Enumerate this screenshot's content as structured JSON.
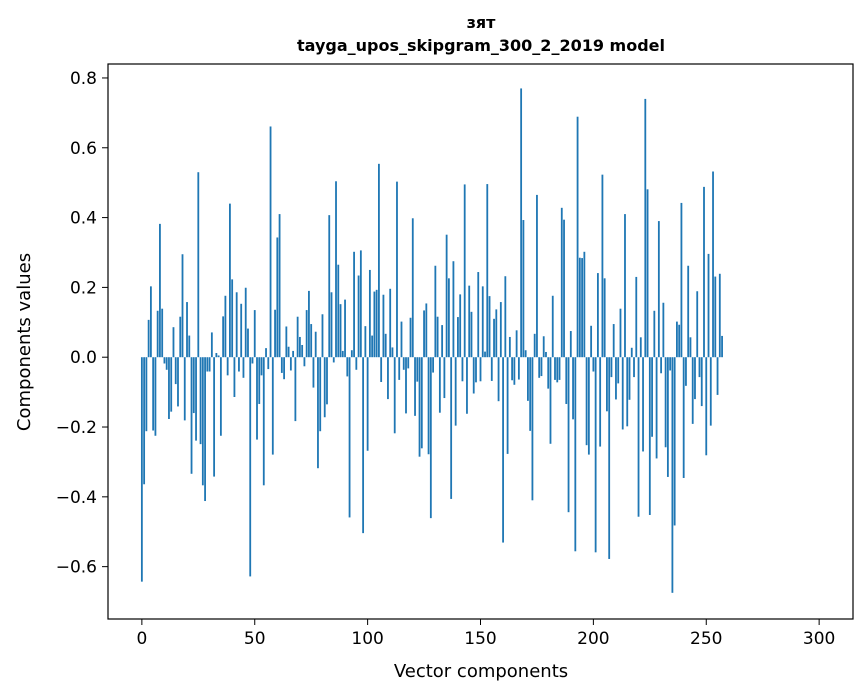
{
  "chart_data": {
    "type": "bar",
    "title_line1": "зят",
    "title_line2": "tayga_upos_skipgram_300_2_2019 model",
    "xlabel": "Vector components",
    "ylabel": "Components values",
    "xlim": [
      -15,
      315
    ],
    "ylim": [
      -0.75,
      0.84
    ],
    "xticks": [
      0,
      50,
      100,
      150,
      200,
      250,
      300
    ],
    "xtick_labels": [
      "0",
      "50",
      "100",
      "150",
      "200",
      "250",
      "300"
    ],
    "yticks": [
      -0.6,
      -0.4,
      -0.2,
      0.0,
      0.2,
      0.4,
      0.6,
      0.8
    ],
    "ytick_labels": [
      "−0.6",
      "−0.4",
      "−0.2",
      "0.0",
      "0.2",
      "0.4",
      "0.6",
      "0.8"
    ],
    "grid": false,
    "bar_color": "#1f77b4",
    "values": [
      -0.643,
      -0.364,
      -0.212,
      0.107,
      0.203,
      -0.21,
      -0.225,
      0.133,
      0.382,
      0.139,
      -0.018,
      -0.036,
      -0.177,
      -0.156,
      0.086,
      -0.077,
      -0.141,
      0.116,
      0.295,
      -0.181,
      0.158,
      0.062,
      -0.334,
      -0.16,
      -0.239,
      0.53,
      -0.249,
      -0.367,
      -0.412,
      -0.041,
      -0.041,
      0.071,
      -0.342,
      0.012,
      0.005,
      -0.225,
      0.117,
      0.176,
      -0.052,
      0.44,
      0.223,
      -0.114,
      0.186,
      -0.041,
      0.153,
      -0.059,
      0.199,
      0.082,
      -0.628,
      -0.018,
      0.135,
      -0.236,
      -0.134,
      -0.052,
      -0.367,
      0.026,
      -0.034,
      0.661,
      -0.279,
      0.136,
      0.343,
      0.41,
      -0.045,
      -0.063,
      0.088,
      0.03,
      -0.038,
      0.018,
      -0.183,
      0.116,
      0.058,
      0.035,
      -0.026,
      0.135,
      0.19,
      0.095,
      -0.087,
      0.073,
      -0.318,
      -0.212,
      0.123,
      -0.172,
      -0.135,
      0.407,
      0.186,
      -0.015,
      0.504,
      0.265,
      0.152,
      0.018,
      0.165,
      -0.055,
      -0.459,
      0.02,
      0.302,
      -0.036,
      0.234,
      0.306,
      -0.504,
      0.089,
      -0.268,
      0.25,
      0.062,
      0.188,
      0.193,
      0.554,
      -0.071,
      0.179,
      0.067,
      -0.12,
      0.196,
      0.028,
      -0.218,
      0.503,
      -0.065,
      0.102,
      -0.036,
      -0.161,
      -0.032,
      0.113,
      0.398,
      -0.168,
      -0.07,
      -0.285,
      -0.261,
      0.134,
      0.154,
      -0.278,
      -0.461,
      -0.044,
      0.262,
      0.116,
      -0.159,
      0.092,
      -0.117,
      0.351,
      0.226,
      -0.406,
      0.275,
      -0.196,
      0.115,
      0.18,
      -0.069,
      0.495,
      -0.162,
      0.205,
      0.13,
      -0.104,
      -0.072,
      0.244,
      -0.069,
      0.203,
      0.016,
      0.496,
      0.175,
      -0.068,
      0.11,
      0.137,
      -0.126,
      0.158,
      -0.531,
      0.232,
      -0.277,
      0.058,
      -0.066,
      -0.079,
      0.077,
      -0.064,
      0.77,
      0.393,
      0.02,
      -0.125,
      -0.211,
      -0.41,
      0.067,
      0.465,
      -0.059,
      -0.054,
      0.06,
      0.015,
      -0.09,
      -0.248,
      0.176,
      -0.065,
      -0.072,
      -0.065,
      0.428,
      0.394,
      -0.134,
      -0.444,
      0.075,
      -0.178,
      -0.556,
      0.689,
      0.285,
      0.284,
      0.302,
      -0.252,
      -0.279,
      0.09,
      -0.041,
      -0.559,
      0.241,
      -0.256,
      0.523,
      0.226,
      -0.155,
      -0.578,
      -0.057,
      0.095,
      -0.121,
      -0.075,
      0.139,
      -0.207,
      0.41,
      -0.198,
      -0.122,
      0.027,
      -0.057,
      0.23,
      -0.457,
      0.057,
      -0.27,
      0.74,
      0.481,
      -0.452,
      -0.228,
      0.133,
      -0.29,
      0.39,
      -0.046,
      0.156,
      -0.258,
      -0.343,
      -0.038,
      -0.675,
      -0.482,
      0.102,
      0.093,
      0.442,
      -0.346,
      -0.082,
      0.262,
      0.057,
      -0.191,
      -0.12,
      0.189,
      -0.057,
      -0.14,
      0.488,
      -0.281,
      0.296,
      -0.196,
      0.532,
      0.231,
      -0.108,
      0.239,
      0.061
    ]
  }
}
